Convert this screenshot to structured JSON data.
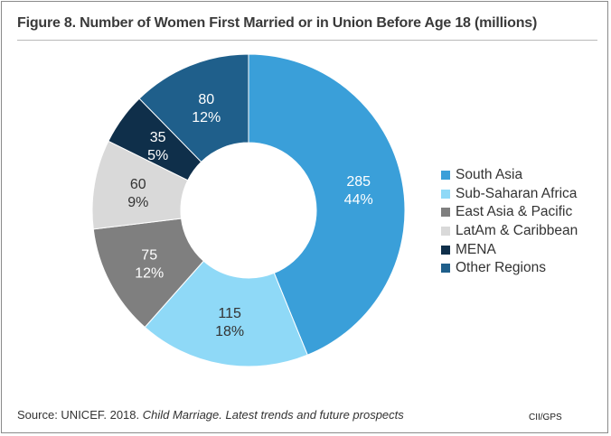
{
  "title": "Figure 8. Number of Women First Married or in Union Before Age 18 (millions)",
  "source_prefix": "Source: UNICEF. 2018. ",
  "source_italic": "Child Marriage. Latest trends and future prospects",
  "brand": "CII/GPS",
  "chart_data": {
    "type": "pie",
    "variant": "donut",
    "title": "Figure 8. Number of Women First Married or in Union Before Age 18 (millions)",
    "legend_position": "right",
    "start_angle_deg": 0,
    "direction": "clockwise",
    "slices": [
      {
        "name": "South Asia",
        "value": 285,
        "percent_label": "44%",
        "color": "#3a9fd9",
        "label_color": "#ffffff"
      },
      {
        "name": "Sub-Saharan Africa",
        "value": 115,
        "percent_label": "18%",
        "color": "#8fd9f7",
        "label_color": "#333333"
      },
      {
        "name": "East Asia & Pacific",
        "value": 75,
        "percent_label": "12%",
        "color": "#7f7f7f",
        "label_color": "#ffffff"
      },
      {
        "name": "LatAm & Caribbean",
        "value": 60,
        "percent_label": "9%",
        "color": "#d9d9d9",
        "label_color": "#333333"
      },
      {
        "name": "MENA",
        "value": 35,
        "percent_label": "5%",
        "color": "#0f2f4a",
        "label_color": "#ffffff"
      },
      {
        "name": "Other Regions",
        "value": 80,
        "percent_label": "12%",
        "color": "#1f5f8b",
        "label_color": "#ffffff"
      }
    ]
  }
}
